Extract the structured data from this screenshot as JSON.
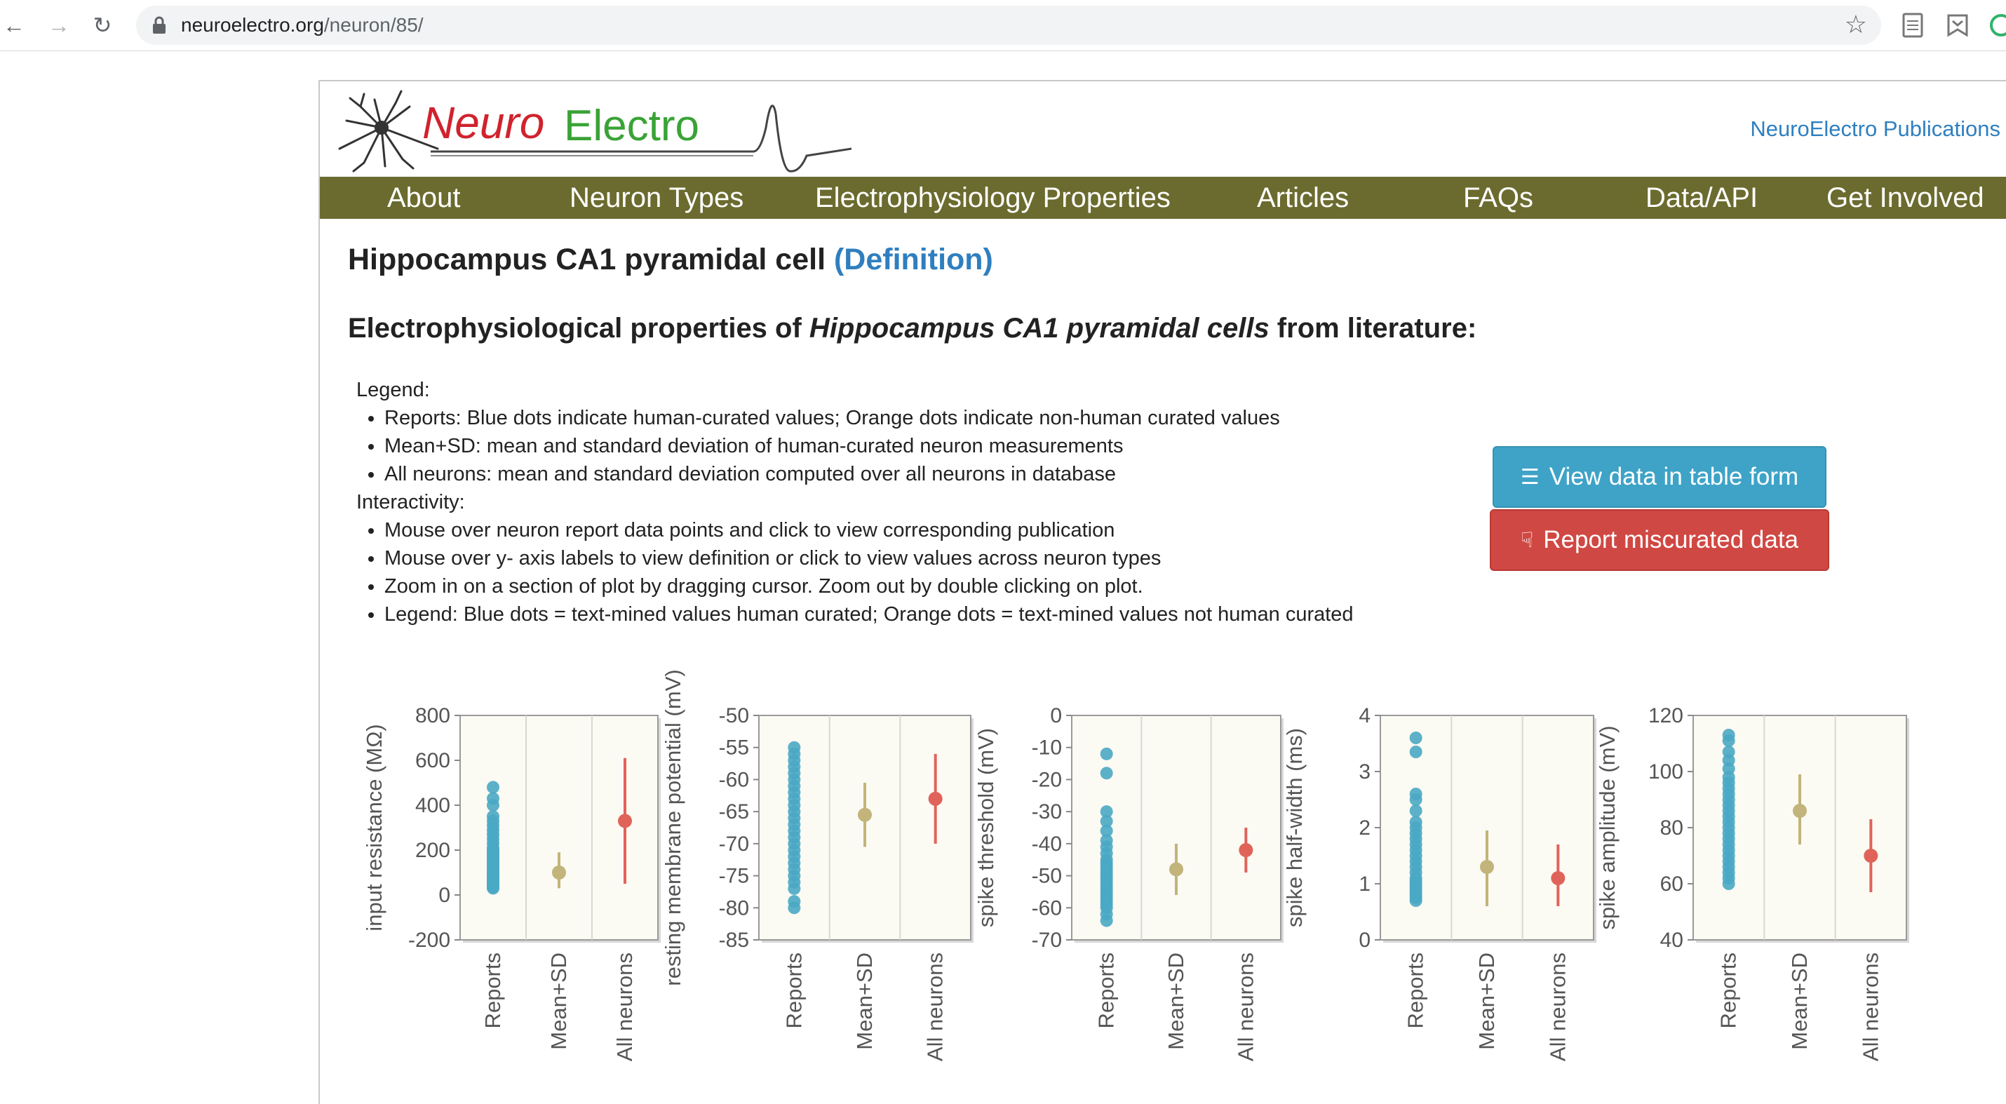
{
  "browser": {
    "url_host": "neuroelectro.org",
    "url_path": "/neuron/85/"
  },
  "site": {
    "logo_text_1": "Neuro",
    "logo_text_2": "Electro",
    "publications_link": "NeuroElectro Publications",
    "menu": [
      "About",
      "Neuron Types",
      "Electrophysiology Properties",
      "Articles",
      "FAQs",
      "Data/API",
      "Get Involved"
    ]
  },
  "page": {
    "title": "Hippocampus CA1 pyramidal cell",
    "definition_link": "(Definition)",
    "subtitle_prefix": "Electrophysiological properties of ",
    "subtitle_italic": "Hippocampus CA1 pyramidal cells",
    "subtitle_suffix": " from literature:"
  },
  "legend": {
    "legend_header": "Legend:",
    "legend_items": [
      "Reports: Blue dots indicate human-curated values; Orange dots indicate non-human curated values",
      "Mean+SD: mean and standard deviation of human-curated neuron measurements",
      "All neurons: mean and standard deviation computed over all neurons in database"
    ],
    "interactivity_header": "Interactivity:",
    "interactivity_items": [
      "Mouse over neuron report data points and click to view corresponding publication",
      "Mouse over y- axis labels to view definition or click to view values across neuron types",
      "Zoom in on a section of plot by dragging cursor. Zoom out by double clicking on plot.",
      "Legend: Blue dots = text-mined values human curated; Orange dots = text-mined values not human curated"
    ]
  },
  "buttons": {
    "table_view": "View data in table form",
    "report": "Report miscurated data"
  },
  "colors": {
    "menu_bar": "#6b6b2f",
    "link": "#2f7fbf",
    "reports_dot": "#4aa8c4",
    "mean_sd": "#c2b47a",
    "all_neurons": "#e0635a",
    "plot_bg": "#fbfaf3"
  },
  "chart_data": [
    {
      "type": "scatter",
      "ylabel": "input resistance (MΩ)",
      "categories": [
        "Reports",
        "Mean+SD",
        "All neurons"
      ],
      "ylim": [
        -200,
        800
      ],
      "yticks": [
        800,
        600,
        400,
        200,
        0,
        -200
      ],
      "reports": [
        480,
        430,
        400,
        350,
        330,
        310,
        290,
        270,
        250,
        230,
        210,
        200,
        190,
        180,
        170,
        160,
        150,
        140,
        130,
        120,
        110,
        100,
        95,
        90,
        80,
        75,
        70,
        60,
        55,
        50,
        45,
        40,
        35,
        30
      ],
      "mean_sd": {
        "mean": 100,
        "low": 30,
        "high": 190
      },
      "all_neurons": {
        "mean": 330,
        "low": 50,
        "high": 610
      }
    },
    {
      "type": "scatter",
      "ylabel": "resting membrane potential (mV)",
      "categories": [
        "Reports",
        "Mean+SD",
        "All neurons"
      ],
      "ylim": [
        -85,
        -50
      ],
      "yticks": [
        -50,
        -55,
        -60,
        -65,
        -70,
        -75,
        -80,
        -85
      ],
      "reports": [
        -55,
        -56,
        -57,
        -58,
        -59,
        -60,
        -61,
        -62,
        -63,
        -64,
        -65,
        -66,
        -67,
        -68,
        -69,
        -70,
        -71,
        -72,
        -73,
        -74,
        -75,
        -76,
        -77,
        -79,
        -80
      ],
      "mean_sd": {
        "mean": -65.5,
        "low": -70.5,
        "high": -60.5
      },
      "all_neurons": {
        "mean": -63,
        "low": -70,
        "high": -56
      }
    },
    {
      "type": "scatter",
      "ylabel": "spike threshold (mV)",
      "categories": [
        "Reports",
        "Mean+SD",
        "All neurons"
      ],
      "ylim": [
        -70,
        0
      ],
      "yticks": [
        0,
        -10,
        -20,
        -30,
        -40,
        -50,
        -60,
        -70
      ],
      "reports": [
        -12,
        -18,
        -30,
        -33,
        -36,
        -39,
        -41,
        -43,
        -45,
        -46,
        -47,
        -48,
        -49,
        -50,
        -51,
        -52,
        -53,
        -54,
        -55,
        -56,
        -57,
        -58,
        -59,
        -60,
        -62,
        -64
      ],
      "mean_sd": {
        "mean": -48,
        "low": -56,
        "high": -40
      },
      "all_neurons": {
        "mean": -42,
        "low": -49,
        "high": -35
      }
    },
    {
      "type": "scatter",
      "ylabel": "spike half-width (ms)",
      "categories": [
        "Reports",
        "Mean+SD",
        "All neurons"
      ],
      "ylim": [
        0,
        4
      ],
      "yticks": [
        4,
        3,
        2,
        1,
        0
      ],
      "reports": [
        3.6,
        3.35,
        2.6,
        2.5,
        2.3,
        2.1,
        2.0,
        1.9,
        1.8,
        1.7,
        1.6,
        1.5,
        1.4,
        1.3,
        1.2,
        1.1,
        1.05,
        1.0,
        0.95,
        0.9,
        0.85,
        0.8,
        0.75,
        0.7
      ],
      "mean_sd": {
        "mean": 1.3,
        "low": 0.6,
        "high": 1.95
      },
      "all_neurons": {
        "mean": 1.1,
        "low": 0.6,
        "high": 1.7
      }
    },
    {
      "type": "scatter",
      "ylabel": "spike amplitude (mV)",
      "categories": [
        "Reports",
        "Mean+SD",
        "All neurons"
      ],
      "ylim": [
        40,
        120
      ],
      "yticks": [
        120,
        100,
        80,
        60,
        40
      ],
      "reports": [
        113,
        111,
        107,
        104,
        101,
        98,
        96,
        94,
        92,
        90,
        88,
        86,
        84,
        82,
        80,
        78,
        76,
        74,
        72,
        70,
        68,
        66,
        64,
        62,
        60
      ],
      "mean_sd": {
        "mean": 86,
        "low": 74,
        "high": 99
      },
      "all_neurons": {
        "mean": 70,
        "low": 57,
        "high": 83
      }
    }
  ]
}
